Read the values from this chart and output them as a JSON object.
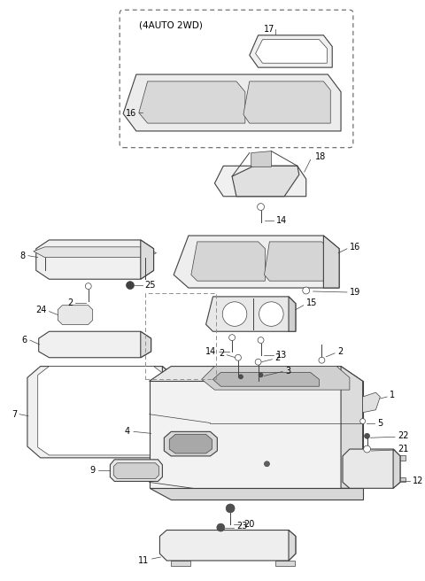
{
  "bg_color": "#ffffff",
  "line_color": "#404040",
  "label_color": "#000000",
  "fig_width": 4.8,
  "fig_height": 6.56,
  "dpi": 100
}
